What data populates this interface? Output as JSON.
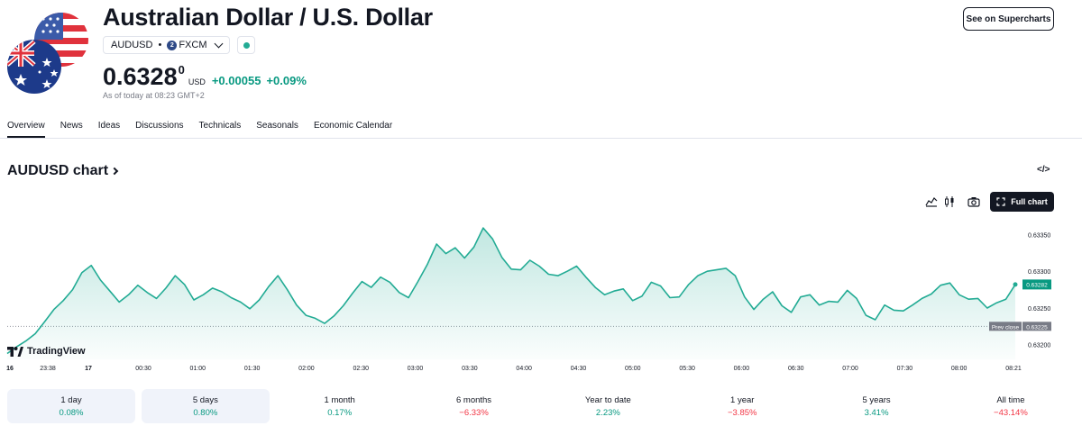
{
  "header": {
    "title": "Australian Dollar / U.S. Dollar",
    "symbol": "AUDUSD",
    "separator": "•",
    "exchange": "FXCM",
    "exchange_badge": "2",
    "price_main": "0.6328",
    "price_sup": "0",
    "currency": "USD",
    "change_abs": "+0.00055",
    "change_pct": "+0.09%",
    "as_of": "As of today at 08:23 GMT+2",
    "supercharts_label": "See on Supercharts"
  },
  "tabs": [
    "Overview",
    "News",
    "Ideas",
    "Discussions",
    "Technicals",
    "Seasonals",
    "Economic Calendar"
  ],
  "chart_section": {
    "heading": "AUDUSD chart",
    "embed_label": "</>",
    "full_chart_label": "Full chart",
    "logo_text": "TradingView"
  },
  "chart_data": {
    "type": "area",
    "title": "AUDUSD chart",
    "ylim": [
      0.6318,
      0.6338
    ],
    "y_ticks": [
      "0.63350",
      "0.63300",
      "0.63250",
      "0.63200"
    ],
    "x_tick_labels": [
      "16",
      "23:38",
      "17",
      "00:30",
      "01:00",
      "01:30",
      "02:00",
      "02:30",
      "03:00",
      "03:30",
      "04:00",
      "04:30",
      "05:00",
      "05:30",
      "06:00",
      "06:30",
      "07:00",
      "07:30",
      "08:00",
      "08:21"
    ],
    "prev_close": 0.63225,
    "prev_close_label": "Prev close",
    "prev_close_value": "0.63225",
    "last_value": "0.63282",
    "series": [
      {
        "name": "AUDUSD",
        "values": [
          0.63188,
          0.63197,
          0.63205,
          0.63215,
          0.63231,
          0.63248,
          0.6326,
          0.63275,
          0.63298,
          0.63308,
          0.63288,
          0.63273,
          0.63258,
          0.63268,
          0.63281,
          0.63271,
          0.63263,
          0.63277,
          0.63294,
          0.63282,
          0.63261,
          0.63268,
          0.63277,
          0.63272,
          0.63264,
          0.63258,
          0.63249,
          0.63261,
          0.63279,
          0.63294,
          0.63275,
          0.63254,
          0.6324,
          0.63236,
          0.63229,
          0.63239,
          0.63253,
          0.6327,
          0.63286,
          0.63278,
          0.63292,
          0.63285,
          0.63271,
          0.63264,
          0.63286,
          0.63309,
          0.63337,
          0.63324,
          0.63332,
          0.63318,
          0.63333,
          0.63359,
          0.63344,
          0.63319,
          0.63303,
          0.63302,
          0.63315,
          0.63307,
          0.63296,
          0.63294,
          0.633,
          0.63307,
          0.63292,
          0.63278,
          0.63268,
          0.63273,
          0.63276,
          0.6326,
          0.63266,
          0.63285,
          0.6328,
          0.63264,
          0.63265,
          0.63282,
          0.63294,
          0.633,
          0.63302,
          0.63304,
          0.63294,
          0.63265,
          0.63248,
          0.63262,
          0.63272,
          0.63253,
          0.63244,
          0.63265,
          0.63268,
          0.63254,
          0.63259,
          0.63258,
          0.63274,
          0.63263,
          0.6324,
          0.63234,
          0.63254,
          0.63247,
          0.63246,
          0.63254,
          0.63263,
          0.63269,
          0.63281,
          0.63284,
          0.63268,
          0.63262,
          0.63263,
          0.6325,
          0.63257,
          0.63262,
          0.63282
        ]
      }
    ]
  },
  "periods": [
    {
      "label": "1 day",
      "value": "0.08%",
      "tone": "pos",
      "selected": true
    },
    {
      "label": "5 days",
      "value": "0.80%",
      "tone": "pos",
      "selected": true
    },
    {
      "label": "1 month",
      "value": "0.17%",
      "tone": "pos",
      "selected": false
    },
    {
      "label": "6 months",
      "value": "−6.33%",
      "tone": "neg",
      "selected": false
    },
    {
      "label": "Year to date",
      "value": "2.23%",
      "tone": "pos",
      "selected": false
    },
    {
      "label": "1 year",
      "value": "−3.85%",
      "tone": "neg",
      "selected": false
    },
    {
      "label": "5 years",
      "value": "3.41%",
      "tone": "pos",
      "selected": false
    },
    {
      "label": "All time",
      "value": "−43.14%",
      "tone": "neg",
      "selected": false
    }
  ],
  "colors": {
    "accent_green": "#089981",
    "line_green": "#22ab94",
    "negative_red": "#f23645",
    "text_dark": "#131722",
    "muted": "#787b86"
  }
}
